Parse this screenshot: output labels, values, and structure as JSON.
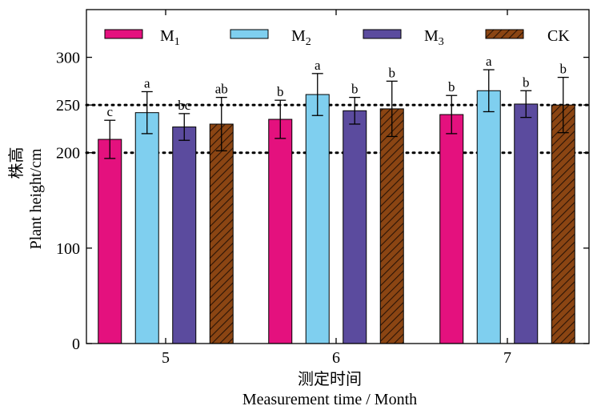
{
  "chart_data": {
    "type": "bar",
    "categories": [
      "5",
      "6",
      "7"
    ],
    "series": [
      {
        "name": "M1",
        "color": "#e4117e",
        "pattern": "solid",
        "values": [
          214,
          235,
          240
        ],
        "errors": [
          20,
          20,
          20
        ],
        "sig": [
          "c",
          "b",
          "b"
        ]
      },
      {
        "name": "M2",
        "color": "#7fcfef",
        "pattern": "solid",
        "values": [
          242,
          261,
          265
        ],
        "errors": [
          22,
          22,
          22
        ],
        "sig": [
          "a",
          "a",
          "a"
        ]
      },
      {
        "name": "M3",
        "color": "#5b4b9e",
        "pattern": "solid",
        "values": [
          227,
          244,
          251
        ],
        "errors": [
          14,
          14,
          14
        ],
        "sig": [
          "bc",
          "b",
          "b"
        ]
      },
      {
        "name": "CK",
        "color": "#8b4513",
        "pattern": "hatched",
        "values": [
          230,
          246,
          250
        ],
        "errors": [
          28,
          29,
          29
        ],
        "sig": [
          "ab",
          "b",
          "b"
        ]
      }
    ],
    "ylim": [
      0,
      350
    ],
    "yticks": [
      0,
      100,
      200,
      250,
      300
    ],
    "reference_lines": [
      200,
      250
    ],
    "xlabel_cn": "测定时间",
    "xlabel_en": "Measurement time / Month",
    "ylabel_cn": "株高",
    "ylabel_en": "Plant height/cm",
    "legend": {
      "placement": "top",
      "items": [
        "M1",
        "M2",
        "M3",
        "CK"
      ]
    },
    "grid": false
  }
}
